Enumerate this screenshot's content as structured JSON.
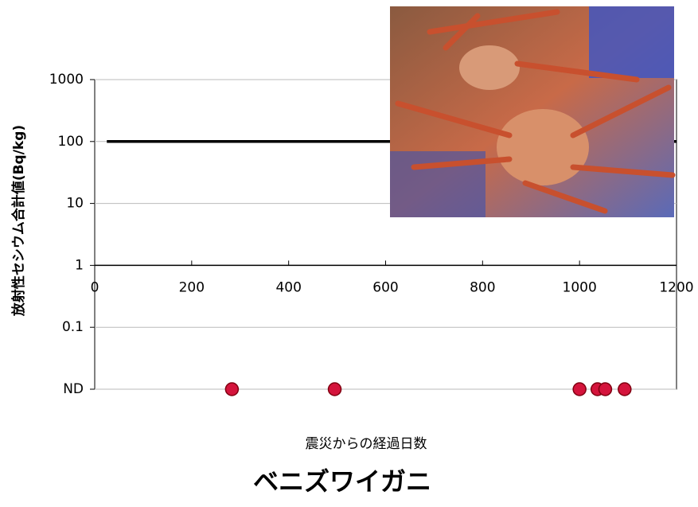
{
  "chart_data": {
    "type": "scatter",
    "title": "ベニズワイガニ",
    "y_label": "放射性セシウム合計値(Bq/kg)",
    "x_label": "震災からの経過日数",
    "log_y": true,
    "xlim": [
      0,
      1200
    ],
    "xticks": [
      0,
      200,
      400,
      600,
      800,
      1000,
      1200
    ],
    "ylim": [
      0.01,
      1000
    ],
    "yticks": [
      {
        "value": 0.01,
        "label": "ND"
      },
      0.1,
      1,
      10,
      100,
      1000
    ],
    "x_axis_at": 1,
    "grid": true,
    "color": "#d4143c",
    "x": [
      283,
      495,
      1000,
      1037,
      1053,
      1093
    ],
    "values": [
      0.01,
      0.01,
      0.01,
      0.01,
      0.01,
      0.01
    ],
    "reference_line": {
      "y": 100,
      "x": [
        25,
        1200
      ],
      "color": "#000000"
    }
  }
}
